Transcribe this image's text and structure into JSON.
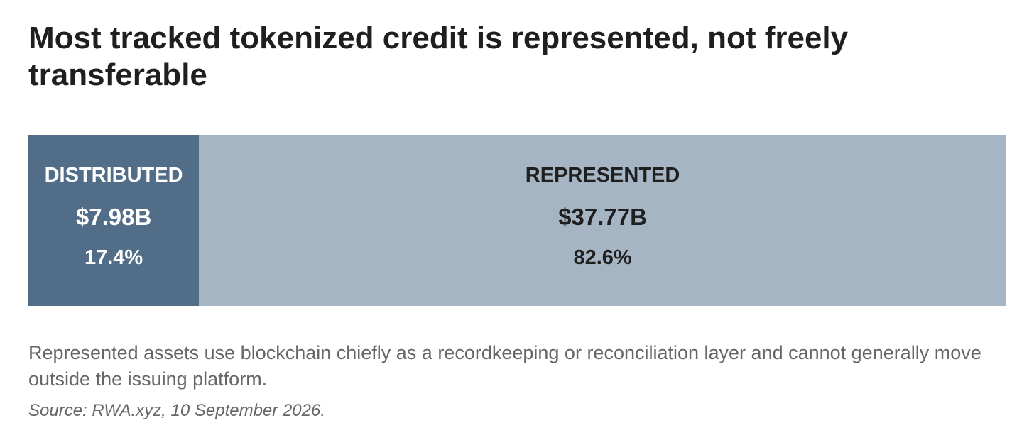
{
  "title": "Most tracked tokenized credit is represented, not freely transferable",
  "chart_data": {
    "type": "bar",
    "orientation": "horizontal-stacked-100",
    "title": "Most tracked tokenized credit is represented, not freely transferable",
    "categories": [
      "DISTRIBUTED",
      "REPRESENTED"
    ],
    "segments": [
      {
        "label": "DISTRIBUTED",
        "value_text": "$7.98B",
        "value": 7.98,
        "unit": "USD billions",
        "share_text": "17.4%",
        "share": 17.4,
        "color": "#526d87",
        "text_color": "#ffffff"
      },
      {
        "label": "REPRESENTED",
        "value_text": "$37.77B",
        "value": 37.77,
        "unit": "USD billions",
        "share_text": "82.6%",
        "share": 82.6,
        "color": "#a6b5c3",
        "text_color": "#1f1f1f"
      }
    ],
    "grid": false,
    "legend": "none"
  },
  "note": "Represented assets use blockchain chiefly as a recordkeeping or reconciliation layer and cannot generally move outside the issuing platform.",
  "source": "Source: RWA.xyz, 10 September 2026."
}
